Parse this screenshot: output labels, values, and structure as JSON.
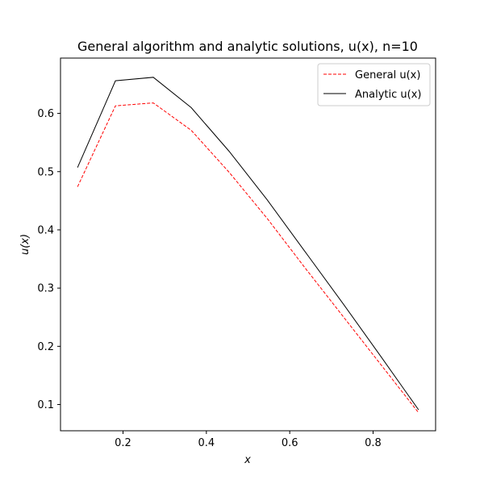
{
  "chart_data": {
    "type": "line",
    "title": "General algorithm and analytic solutions, u(x), n=10",
    "xlabel": "x",
    "ylabel": "u(x)",
    "xlim": [
      0.05,
      0.95
    ],
    "ylim": [
      0.055,
      0.695
    ],
    "xticks": [
      0.2,
      0.4,
      0.6,
      0.8
    ],
    "yticks": [
      0.1,
      0.2,
      0.3,
      0.4,
      0.5,
      0.6
    ],
    "x": [
      0.0909,
      0.1818,
      0.2727,
      0.3636,
      0.4545,
      0.5455,
      0.6364,
      0.7273,
      0.8182,
      0.9091
    ],
    "series": [
      {
        "name": "General u(x)",
        "color": "#ff0000",
        "dash": "dashed",
        "values": [
          0.474,
          0.613,
          0.618,
          0.571,
          0.499,
          0.42,
          0.335,
          0.252,
          0.169,
          0.086
        ]
      },
      {
        "name": "Analytic u(x)",
        "color": "#000000",
        "dash": "solid",
        "values": [
          0.507,
          0.656,
          0.662,
          0.61,
          0.535,
          0.452,
          0.363,
          0.274,
          0.183,
          0.091
        ]
      }
    ],
    "legend": "top-right",
    "grid": false
  }
}
